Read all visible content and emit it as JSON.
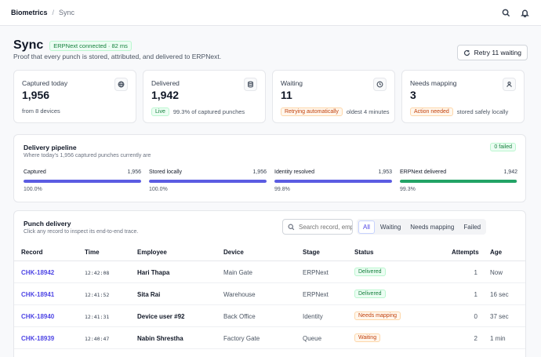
{
  "breadcrumb": {
    "root": "Biometrics",
    "separator": "/",
    "current": "Sync"
  },
  "topbar_icons": [
    "search-icon",
    "bell-icon"
  ],
  "header": {
    "title": "Sync",
    "connection_badge": "ERPNext connected · 82 ms",
    "subtitle": "Proof that every punch is stored, attributed, and delivered to ERPNext.",
    "retry_label": "Retry 11 waiting"
  },
  "stats": [
    {
      "label": "Captured today",
      "value": "1,956",
      "note": "from 8 devices",
      "badge": "",
      "icon": "globe-icon"
    },
    {
      "label": "Delivered",
      "value": "1,942",
      "badge": "Live",
      "note": "99.3% of captured punches",
      "icon": "database-icon"
    },
    {
      "label": "Waiting",
      "value": "11",
      "badge": "Retrying automatically",
      "note": "oldest 4 minutes",
      "icon": "clock-icon"
    },
    {
      "label": "Needs mapping",
      "value": "3",
      "badge": "Action needed",
      "note": "stored safely locally",
      "icon": "user-icon"
    }
  ],
  "pipeline": {
    "title": "Delivery pipeline",
    "subtitle": "Where today's 1,956 captured punches currently are",
    "failed_badge": "0 failed",
    "stages": [
      {
        "label": "Captured",
        "count": "1,956",
        "percent": "100.0%",
        "fill": 1.0,
        "color": "#5b5ce2"
      },
      {
        "label": "Stored locally",
        "count": "1,956",
        "percent": "100.0%",
        "fill": 1.0,
        "color": "#5b5ce2"
      },
      {
        "label": "Identity resolved",
        "count": "1,953",
        "percent": "99.8%",
        "fill": 0.998,
        "color": "#5b5ce2"
      },
      {
        "label": "ERPNext delivered",
        "count": "1,942",
        "percent": "99.3%",
        "fill": 0.993,
        "color": "#22a366"
      }
    ]
  },
  "punch": {
    "title": "Punch delivery",
    "subtitle": "Click any record to inspect its end-to-end trace.",
    "search_placeholder": "Search record, employee",
    "filters": [
      "All",
      "Waiting",
      "Needs mapping",
      "Failed"
    ],
    "active_filter": "All",
    "columns": [
      "Record",
      "Time",
      "Employee",
      "Device",
      "Stage",
      "Status",
      "Attempts",
      "Age"
    ],
    "rows": [
      {
        "record": "CHK-18942",
        "time": "12:42:08",
        "employee": "Hari Thapa",
        "device": "Main Gate",
        "stage": "ERPNext",
        "status": "Delivered",
        "status_kind": "green",
        "attempts": "1",
        "age": "Now"
      },
      {
        "record": "CHK-18941",
        "time": "12:41:52",
        "employee": "Sita Rai",
        "device": "Warehouse",
        "stage": "ERPNext",
        "status": "Delivered",
        "status_kind": "green",
        "attempts": "1",
        "age": "16 sec"
      },
      {
        "record": "CHK-18940",
        "time": "12:41:31",
        "employee": "Device user #92",
        "device": "Back Office",
        "stage": "Identity",
        "status": "Needs mapping",
        "status_kind": "orange",
        "attempts": "0",
        "age": "37 sec"
      },
      {
        "record": "CHK-18939",
        "time": "12:40:47",
        "employee": "Nabin Shrestha",
        "device": "Factory Gate",
        "stage": "Queue",
        "status": "Waiting",
        "status_kind": "orange",
        "attempts": "2",
        "age": "1 min"
      }
    ]
  }
}
